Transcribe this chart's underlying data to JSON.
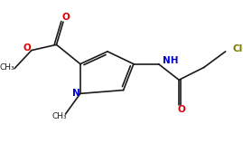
{
  "bg_color": "#ffffff",
  "bond_color": "#1a1a1a",
  "atom_colors": {
    "O": "#e00000",
    "N": "#0000cd",
    "Cl": "#7a7a00",
    "C": "#1a1a1a"
  },
  "figsize": [
    2.69,
    1.69
  ],
  "dpi": 100,
  "xlim": [
    0,
    10
  ],
  "ylim": [
    0,
    6.3
  ]
}
